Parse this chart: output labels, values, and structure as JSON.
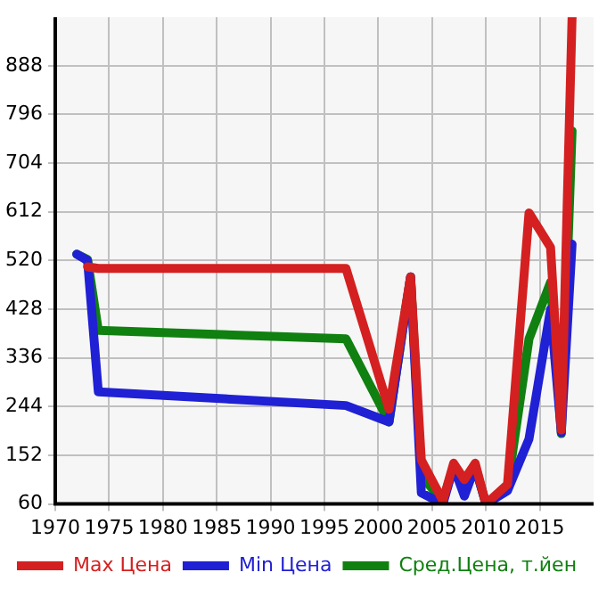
{
  "chart_data": {
    "type": "line",
    "x": [
      1972,
      1973,
      1974,
      1997,
      2001,
      2003,
      2004,
      2006,
      2007,
      2008,
      2009,
      2010,
      2012,
      2014,
      2016,
      2017,
      2018
    ],
    "series": [
      {
        "name": "Max Цена",
        "color": "#d42020",
        "values": [
          null,
          508,
          505,
          505,
          239,
          489,
          143,
          66,
          137,
          106,
          137,
          60,
          97,
          610,
          545,
          200,
          980
        ]
      },
      {
        "name": "Min Цена",
        "color": "#2020d4",
        "values": [
          532,
          520,
          272,
          246,
          215,
          489,
          81,
          60,
          131,
          75,
          131,
          60,
          85,
          183,
          428,
          195,
          551
        ]
      },
      {
        "name": "Сред.Цена, т.йен",
        "color": "#108010",
        "values": [
          532,
          522,
          388,
          372,
          215,
          489,
          113,
          66,
          131,
          94,
          131,
          60,
          91,
          372,
          479,
          193,
          765
        ]
      }
    ],
    "xlim": [
      1970,
      2020
    ],
    "xticks": [
      1970,
      1975,
      1980,
      1985,
      1990,
      1995,
      2000,
      2005,
      2010,
      2015
    ],
    "ylim": [
      60,
      980
    ],
    "yticks": [
      60,
      152,
      244,
      336,
      428,
      520,
      612,
      704,
      796,
      888
    ],
    "grid": true,
    "legend": "bottom",
    "marker": "none",
    "line_style": "solid"
  }
}
